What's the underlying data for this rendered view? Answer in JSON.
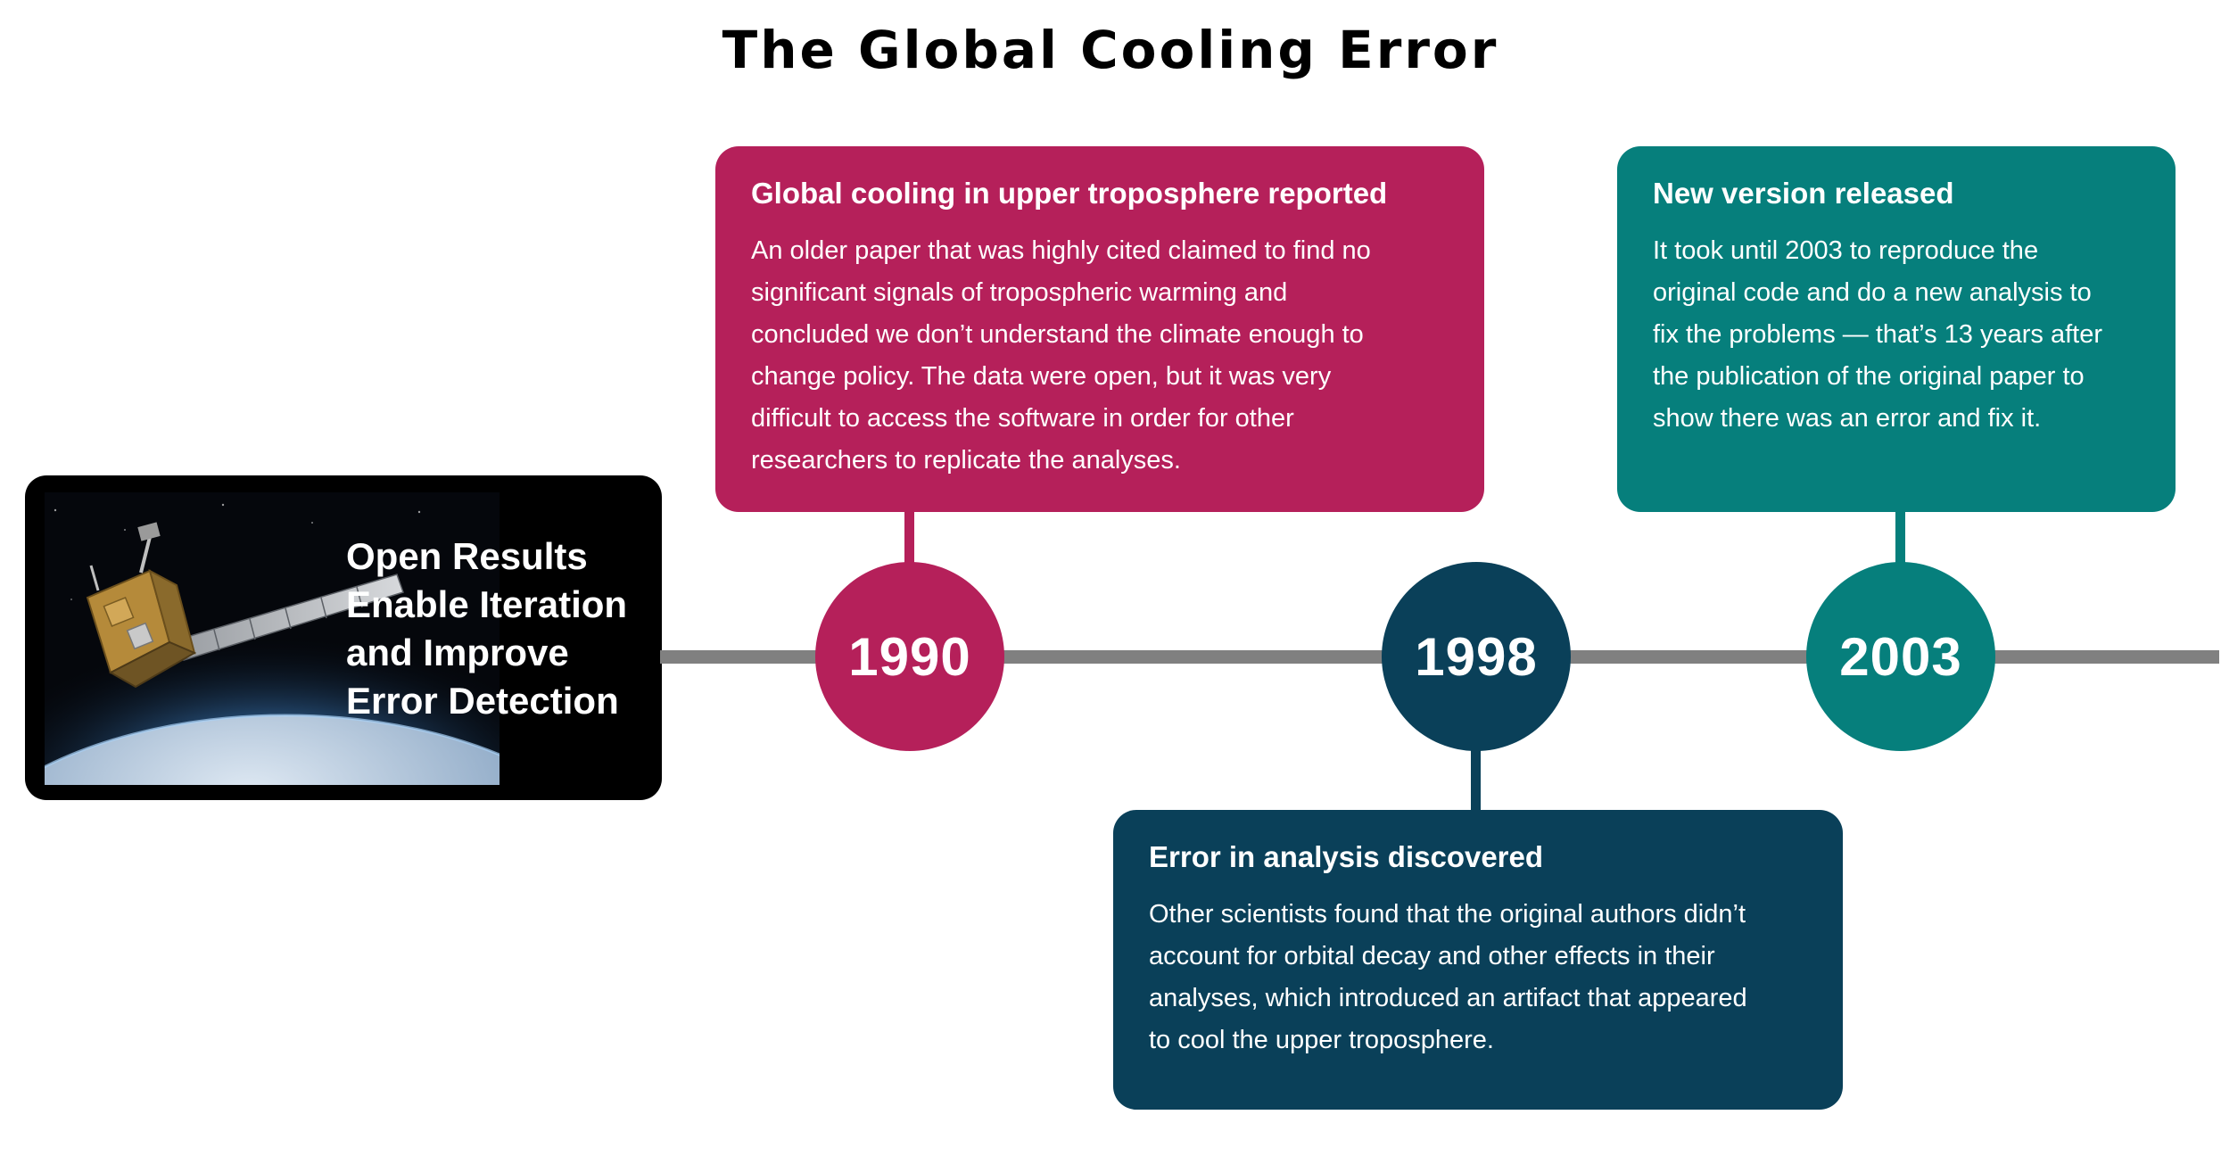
{
  "title": "The Global Cooling Error",
  "intro": {
    "headline_lines": [
      "Open Results",
      "Enable Iteration",
      "and Improve",
      "Error Detection"
    ]
  },
  "colors": {
    "magenta": "#b5205a",
    "navy": "#0a4059",
    "teal": "#067f7c",
    "line": "#808080"
  },
  "events": [
    {
      "year": "1990",
      "title": "Global cooling in upper troposphere reported",
      "lines": [
        "An older paper that was highly cited claimed to find no",
        "significant signals of tropospheric warming and",
        "concluded we don’t understand the climate enough to",
        "change policy. The data were open, but it was very",
        "difficult to access the software in order for other",
        "researchers to replicate the analyses."
      ]
    },
    {
      "year": "1998",
      "title": "Error in analysis discovered",
      "lines": [
        "Other scientists found that the original authors didn’t",
        "account for orbital decay and other effects in their",
        "analyses, which introduced an artifact that appeared",
        "to cool the upper troposphere."
      ]
    },
    {
      "year": "2003",
      "title": "New version released",
      "lines": [
        "It took until 2003 to reproduce the",
        "original code and do a new analysis to",
        "fix the problems — that’s 13 years after",
        "the publication of the original paper to",
        "show there was an error and fix it."
      ]
    }
  ]
}
